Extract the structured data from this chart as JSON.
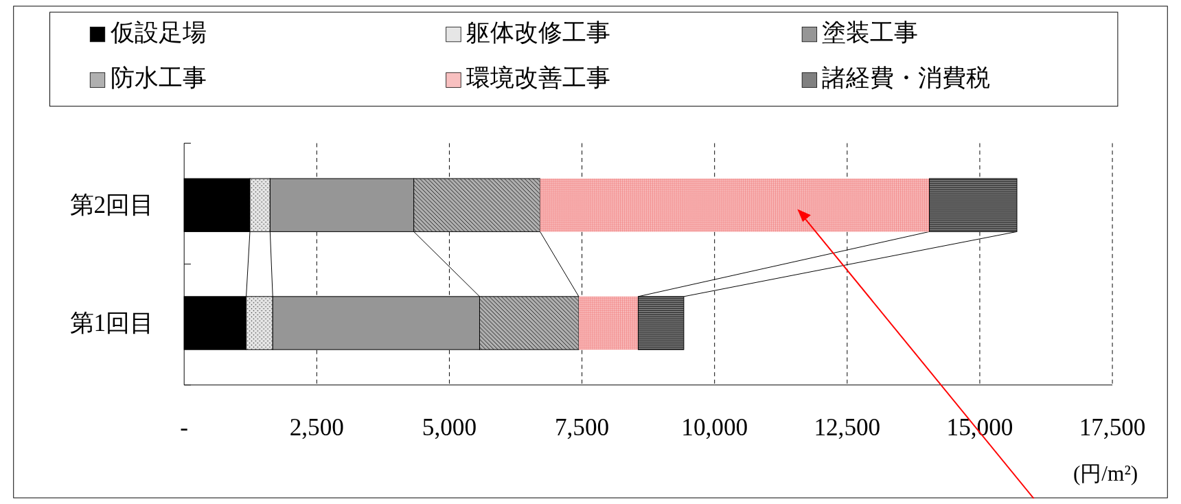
{
  "chart_data": {
    "type": "bar",
    "orientation": "horizontal",
    "stacked": true,
    "categories": [
      "第2回目",
      "第1回目"
    ],
    "series": [
      {
        "name": "仮設足場",
        "color": "#000000",
        "values": [
          1240,
          1170
        ]
      },
      {
        "name": "躯体改修工事",
        "color": "#e6e6e6",
        "values": [
          380,
          500
        ]
      },
      {
        "name": "塗装工事",
        "color": "#969696",
        "values": [
          2710,
          3900
        ]
      },
      {
        "name": "防水工事",
        "color": "#b0b0b0",
        "values": [
          2380,
          1870
        ]
      },
      {
        "name": "環境改善工事",
        "color": "#f8c0c0",
        "values": [
          7340,
          1120
        ]
      },
      {
        "name": "諸経費・消費税",
        "color": "#808080",
        "values": [
          1650,
          860
        ]
      }
    ],
    "xlim": [
      0,
      17500
    ],
    "xticks": [
      {
        "value": 0,
        "label": "-"
      },
      {
        "value": 2500,
        "label": "2,500"
      },
      {
        "value": 5000,
        "label": "5,000"
      },
      {
        "value": 7500,
        "label": "7,500"
      },
      {
        "value": 10000,
        "label": "10,000"
      },
      {
        "value": 12500,
        "label": "12,500"
      },
      {
        "value": 15000,
        "label": "15,000"
      },
      {
        "value": 17500,
        "label": "17,500"
      }
    ],
    "xlabel": "(円/m²)",
    "grid": "x",
    "line_style": "dashed",
    "legend": "top"
  }
}
